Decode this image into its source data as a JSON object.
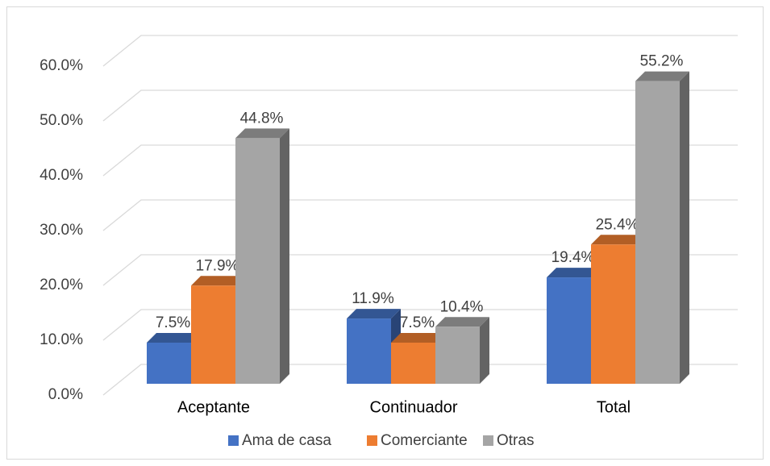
{
  "chart_data": {
    "type": "bar3d",
    "categories": [
      "Aceptante",
      "Continuador",
      "Total"
    ],
    "series": [
      {
        "name": "Ama de casa",
        "color": "#4472c4",
        "values": [
          7.5,
          11.9,
          19.4
        ],
        "value_labels": [
          "7.5%",
          "11.9%",
          "19.4%"
        ]
      },
      {
        "name": "Comerciante",
        "color": "#ed7d31",
        "values": [
          17.9,
          7.5,
          25.4
        ],
        "value_labels": [
          "17.9%",
          "7.5%",
          "25.4%"
        ]
      },
      {
        "name": "Otras",
        "color": "#a5a5a5",
        "values": [
          44.8,
          10.4,
          55.2
        ],
        "value_labels": [
          "44.8%",
          "10.4%",
          "55.2%"
        ]
      }
    ],
    "ylim": [
      0,
      60
    ],
    "yticks": [
      {
        "value": 0,
        "label": "0.0%"
      },
      {
        "value": 10,
        "label": "10.0%"
      },
      {
        "value": 20,
        "label": "20.0%"
      },
      {
        "value": 30,
        "label": "30.0%"
      },
      {
        "value": 40,
        "label": "40.0%"
      },
      {
        "value": 50,
        "label": "50.0%"
      },
      {
        "value": 60,
        "label": "60.0%"
      }
    ],
    "grid": true,
    "legend": "bottom"
  }
}
